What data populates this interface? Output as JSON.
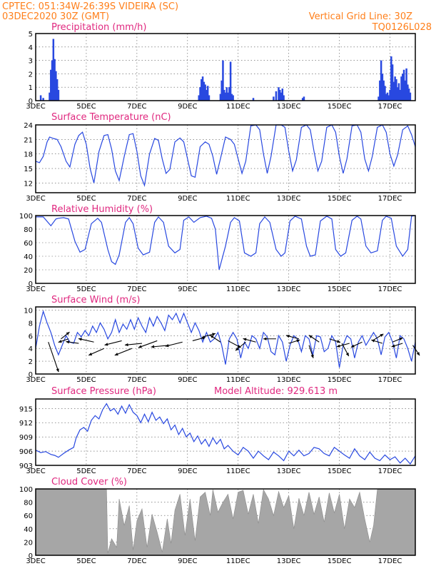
{
  "header": {
    "line1": "CPTEC:   051:34W-26:39S   VIDEIRA (SC)",
    "line2": "03DEC2020 30Z (GMT)",
    "grid_note": "Vertical Grid Line: 30Z",
    "code": "TQ0126L028"
  },
  "colors": {
    "header": "#ff7f1a",
    "title": "#e0287f",
    "series": "#2848e0",
    "cloud": "#a6a6a6",
    "frame": "#000000"
  },
  "x_axis": {
    "start": "03DEC2020 00Z",
    "end": "18DEC2020 00Z",
    "tick_labels": [
      "3DEC",
      "5DEC",
      "7DEC",
      "9DEC",
      "11DEC",
      "13DEC",
      "15DEC",
      "17DEC"
    ],
    "tick_days": [
      3,
      5,
      7,
      9,
      11,
      13,
      15,
      17
    ]
  },
  "chart_data": [
    {
      "id": "precip",
      "type": "bar",
      "title": "Precipitation (mm/h)",
      "ylim": [
        0,
        5
      ],
      "yticks": [
        0,
        1,
        2,
        3,
        4,
        5
      ],
      "grid": true,
      "x": [
        3.2,
        3.3,
        3.55,
        3.6,
        3.65,
        3.7,
        3.75,
        3.8,
        3.85,
        3.9,
        9.45,
        9.5,
        9.55,
        9.6,
        9.65,
        9.7,
        9.75,
        9.8,
        9.85,
        10.3,
        10.35,
        10.4,
        10.45,
        10.5,
        10.55,
        10.6,
        10.65,
        10.7,
        10.75,
        10.8,
        11.6,
        12.4,
        12.5,
        12.6,
        12.65,
        12.7,
        12.75,
        12.8,
        13.55,
        13.6,
        16.55,
        16.6,
        16.65,
        16.7,
        16.75,
        16.8,
        16.85,
        16.9,
        16.95,
        17.0,
        17.05,
        17.1,
        17.15,
        17.2,
        17.25,
        17.3,
        17.35,
        17.4,
        17.45,
        17.5,
        17.55,
        17.6,
        17.65,
        17.7,
        17.75,
        17.8
      ],
      "values": [
        0.4,
        0.2,
        0.6,
        2.3,
        3.0,
        4.6,
        3.1,
        2.2,
        1.6,
        0.8,
        0.4,
        1.0,
        1.6,
        1.8,
        1.4,
        1.2,
        0.8,
        1.1,
        0.4,
        0.5,
        1.5,
        3.0,
        0.8,
        0.6,
        1.0,
        0.6,
        1.0,
        2.9,
        0.5,
        0.4,
        0.2,
        0.3,
        0.7,
        1.0,
        0.8,
        0.6,
        0.9,
        0.4,
        0.2,
        0.3,
        0.3,
        1.5,
        3.0,
        2.0,
        1.5,
        1.1,
        0.5,
        0.6,
        0.4,
        0.8,
        3.3,
        2.7,
        1.4,
        1.8,
        1.6,
        1.0,
        1.3,
        0.8,
        1.8,
        2.0,
        2.3,
        1.5,
        2.4,
        1.2,
        0.9,
        0.6
      ]
    },
    {
      "id": "temp",
      "type": "line",
      "title": "Surface Temperature (nC)",
      "ylim": [
        10,
        24
      ],
      "yticks": [
        12,
        15,
        18,
        21,
        24
      ],
      "grid": true,
      "x": [
        3.0,
        3.15,
        3.3,
        3.45,
        3.55,
        3.7,
        3.85,
        4.0,
        4.2,
        4.35,
        4.55,
        4.7,
        4.85,
        5.0,
        5.15,
        5.3,
        5.5,
        5.7,
        5.85,
        6.0,
        6.15,
        6.3,
        6.5,
        6.7,
        6.85,
        7.0,
        7.15,
        7.3,
        7.5,
        7.7,
        7.85,
        8.0,
        8.15,
        8.3,
        8.5,
        8.7,
        8.85,
        9.0,
        9.15,
        9.3,
        9.5,
        9.7,
        9.85,
        10.0,
        10.15,
        10.3,
        10.5,
        10.7,
        10.85,
        11.0,
        11.15,
        11.3,
        11.5,
        11.7,
        11.85,
        12.0,
        12.15,
        12.3,
        12.5,
        12.7,
        12.85,
        13.0,
        13.15,
        13.3,
        13.5,
        13.7,
        13.85,
        14.0,
        14.15,
        14.3,
        14.5,
        14.7,
        14.85,
        15.0,
        15.15,
        15.3,
        15.5,
        15.7,
        15.85,
        16.0,
        16.15,
        16.3,
        16.5,
        16.7,
        16.85,
        17.0,
        17.15,
        17.3,
        17.5,
        17.7,
        17.85,
        18.0
      ],
      "values": [
        16.5,
        16.2,
        17.5,
        20.5,
        21.5,
        21.2,
        21.0,
        19.5,
        16.5,
        15.3,
        20.0,
        21.8,
        22.5,
        20.0,
        15.0,
        12.0,
        18.5,
        21.8,
        22.0,
        19.0,
        14.5,
        12.5,
        17.5,
        22.0,
        22.2,
        18.5,
        13.5,
        11.5,
        18.0,
        21.2,
        20.8,
        17.0,
        14.0,
        14.8,
        20.5,
        21.3,
        20.5,
        17.0,
        13.5,
        13.2,
        19.5,
        20.5,
        20.0,
        17.5,
        13.8,
        17.0,
        21.5,
        21.0,
        20.0,
        17.0,
        14.0,
        16.5,
        23.8,
        24.0,
        23.0,
        18.0,
        14.0,
        17.5,
        24.0,
        24.0,
        23.5,
        18.5,
        14.5,
        16.8,
        23.5,
        24.0,
        23.0,
        18.5,
        14.5,
        16.5,
        23.5,
        24.0,
        22.5,
        17.5,
        14.0,
        17.0,
        23.8,
        24.0,
        22.5,
        17.0,
        14.5,
        17.5,
        23.5,
        24.0,
        22.5,
        18.0,
        15.5,
        17.8,
        23.0,
        23.8,
        22.0,
        19.5
      ]
    },
    {
      "id": "rh",
      "type": "line",
      "title": "Relative Humidity (%)",
      "ylim": [
        0,
        100
      ],
      "yticks": [
        0,
        20,
        40,
        60,
        80,
        100
      ],
      "grid": true,
      "x": [
        3.0,
        3.3,
        3.6,
        3.8,
        3.9,
        4.1,
        4.3,
        4.55,
        4.75,
        4.95,
        5.2,
        5.45,
        5.6,
        5.85,
        6.0,
        6.15,
        6.3,
        6.55,
        6.7,
        6.85,
        7.05,
        7.25,
        7.5,
        7.7,
        7.85,
        8.05,
        8.25,
        8.5,
        8.7,
        8.85,
        9.05,
        9.25,
        9.5,
        9.75,
        9.95,
        10.1,
        10.25,
        10.5,
        10.7,
        10.85,
        11.05,
        11.25,
        11.5,
        11.7,
        11.85,
        12.05,
        12.25,
        12.5,
        12.7,
        12.85,
        13.05,
        13.25,
        13.5,
        13.7,
        13.85,
        14.05,
        14.25,
        14.5,
        14.7,
        14.85,
        15.05,
        15.25,
        15.5,
        15.7,
        15.85,
        16.05,
        16.25,
        16.5,
        16.7,
        16.85,
        17.05,
        17.25,
        17.5,
        17.7,
        17.85,
        18.0
      ],
      "values": [
        98,
        98,
        85,
        95,
        96,
        97,
        95,
        62,
        46,
        50,
        88,
        96,
        90,
        50,
        32,
        28,
        42,
        90,
        97,
        88,
        52,
        42,
        46,
        90,
        98,
        90,
        55,
        45,
        50,
        93,
        98,
        90,
        97,
        99,
        96,
        80,
        20,
        55,
        90,
        97,
        92,
        45,
        40,
        45,
        88,
        98,
        90,
        50,
        40,
        45,
        92,
        99,
        95,
        55,
        40,
        42,
        92,
        99,
        95,
        50,
        40,
        45,
        93,
        99,
        95,
        55,
        45,
        48,
        93,
        99,
        96,
        55,
        40,
        50,
        99,
        100
      ]
    },
    {
      "id": "wind",
      "type": "line",
      "title": "Surface Wind (m/s)",
      "ylim": [
        0,
        10.5
      ],
      "yticks": [
        0,
        2,
        4,
        6,
        8,
        10
      ],
      "grid": true,
      "x": [
        3.0,
        3.15,
        3.3,
        3.45,
        3.6,
        3.75,
        3.9,
        4.05,
        4.2,
        4.35,
        4.5,
        4.65,
        4.8,
        4.95,
        5.1,
        5.25,
        5.4,
        5.55,
        5.7,
        5.85,
        6.0,
        6.15,
        6.3,
        6.45,
        6.6,
        6.75,
        6.9,
        7.05,
        7.2,
        7.35,
        7.5,
        7.65,
        7.8,
        7.95,
        8.1,
        8.25,
        8.4,
        8.55,
        8.7,
        8.85,
        9.0,
        9.15,
        9.3,
        9.45,
        9.6,
        9.75,
        9.9,
        10.05,
        10.2,
        10.35,
        10.5,
        10.65,
        10.8,
        10.95,
        11.1,
        11.25,
        11.4,
        11.55,
        11.7,
        11.85,
        12.0,
        12.15,
        12.3,
        12.45,
        12.6,
        12.75,
        12.9,
        13.05,
        13.2,
        13.35,
        13.5,
        13.65,
        13.8,
        13.95,
        14.1,
        14.25,
        14.4,
        14.55,
        14.7,
        14.85,
        15.0,
        15.15,
        15.3,
        15.45,
        15.6,
        15.75,
        15.9,
        16.05,
        16.2,
        16.35,
        16.5,
        16.65,
        16.8,
        16.95,
        17.1,
        17.25,
        17.4,
        17.55,
        17.7,
        17.85,
        18.0
      ],
      "values": [
        4.0,
        7.5,
        9.8,
        8.0,
        6.5,
        4.5,
        3.0,
        4.5,
        6.0,
        5.0,
        4.8,
        6.5,
        5.8,
        6.8,
        6.0,
        7.5,
        6.5,
        8.0,
        7.0,
        5.5,
        6.5,
        8.5,
        6.5,
        7.8,
        7.0,
        8.5,
        7.0,
        8.8,
        7.5,
        6.5,
        8.8,
        7.5,
        9.0,
        8.0,
        6.8,
        9.2,
        8.5,
        9.5,
        8.0,
        9.5,
        8.0,
        6.5,
        8.0,
        6.8,
        5.0,
        6.5,
        5.0,
        5.5,
        6.5,
        4.5,
        1.5,
        5.5,
        6.5,
        5.5,
        2.5,
        5.0,
        4.0,
        6.0,
        5.5,
        4.0,
        6.5,
        5.8,
        3.5,
        3.0,
        6.0,
        5.0,
        2.0,
        4.5,
        6.0,
        5.5,
        3.5,
        6.0,
        5.5,
        3.0,
        6.0,
        5.8,
        3.5,
        4.0,
        6.0,
        5.0,
        1.0,
        4.5,
        6.0,
        5.5,
        2.5,
        5.0,
        6.0,
        4.5,
        5.5,
        6.5,
        5.5,
        3.0,
        5.8,
        6.5,
        5.0,
        2.5,
        6.0,
        5.5,
        4.0,
        2.0,
        5.0
      ],
      "arrows": [
        {
          "x": 3.5,
          "y": 5.0,
          "u": 1.2,
          "v": -3.5
        },
        {
          "x": 4.0,
          "y": 5.5,
          "u": 1.0,
          "v": 0.8
        },
        {
          "x": 4.3,
          "y": 5.5,
          "u": -1.2,
          "v": -0.4
        },
        {
          "x": 4.7,
          "y": 4.8,
          "u": -1.5,
          "v": 0.2
        },
        {
          "x": 5.3,
          "y": 5.0,
          "u": -1.8,
          "v": 0.4
        },
        {
          "x": 5.7,
          "y": 4.0,
          "u": -1.8,
          "v": -0.8
        },
        {
          "x": 6.4,
          "y": 5.2,
          "u": -2.0,
          "v": -0.5
        },
        {
          "x": 6.8,
          "y": 4.0,
          "u": -2.0,
          "v": -0.8
        },
        {
          "x": 7.2,
          "y": 4.8,
          "u": -2.0,
          "v": -0.2
        },
        {
          "x": 7.8,
          "y": 5.2,
          "u": -2.2,
          "v": -0.8
        },
        {
          "x": 8.3,
          "y": 4.5,
          "u": -2.2,
          "v": -0.2
        },
        {
          "x": 8.8,
          "y": 5.0,
          "u": -2.0,
          "v": -0.5
        },
        {
          "x": 9.2,
          "y": 5.2,
          "u": 1.5,
          "v": 0.4
        },
        {
          "x": 9.6,
          "y": 5.8,
          "u": 1.5,
          "v": 0.4
        },
        {
          "x": 10.3,
          "y": 5.0,
          "u": -1.2,
          "v": 0.8
        },
        {
          "x": 10.6,
          "y": 5.2,
          "u": 1.5,
          "v": -0.8
        },
        {
          "x": 11.3,
          "y": 5.0,
          "u": -1.2,
          "v": -1.0
        },
        {
          "x": 11.7,
          "y": 5.0,
          "u": -1.5,
          "v": 0.4
        },
        {
          "x": 12.5,
          "y": 5.5,
          "u": -1.5,
          "v": 0.0
        },
        {
          "x": 13.0,
          "y": 4.8,
          "u": 1.3,
          "v": 0.4
        },
        {
          "x": 13.4,
          "y": 5.5,
          "u": -1.5,
          "v": 0.4
        },
        {
          "x": 13.8,
          "y": 4.5,
          "u": 0.5,
          "v": -1.5
        },
        {
          "x": 14.2,
          "y": 5.0,
          "u": -1.2,
          "v": 0.8
        },
        {
          "x": 14.6,
          "y": 5.5,
          "u": 1.3,
          "v": -0.4
        },
        {
          "x": 15.1,
          "y": 4.8,
          "u": 0.8,
          "v": -1.5
        },
        {
          "x": 15.4,
          "y": 4.8,
          "u": -1.5,
          "v": -0.4
        },
        {
          "x": 15.9,
          "y": 5.0,
          "u": -1.3,
          "v": -0.6
        },
        {
          "x": 16.3,
          "y": 5.2,
          "u": 1.3,
          "v": 0.8
        },
        {
          "x": 16.7,
          "y": 4.8,
          "u": -1.3,
          "v": 0.4
        },
        {
          "x": 17.1,
          "y": 5.0,
          "u": 1.2,
          "v": 0.5
        },
        {
          "x": 17.5,
          "y": 4.8,
          "u": -1.3,
          "v": -0.4
        },
        {
          "x": 17.9,
          "y": 4.5,
          "u": 0.8,
          "v": -1.2
        }
      ]
    },
    {
      "id": "pres",
      "type": "line",
      "title": "Surface Pressure (hPa)",
      "annotation": "Model Altitude: 929.613 m",
      "ylim": [
        903,
        917
      ],
      "yticks": [
        903,
        906,
        909,
        912,
        915
      ],
      "grid": true,
      "x": [
        3.0,
        3.2,
        3.4,
        3.6,
        3.75,
        3.9,
        4.1,
        4.3,
        4.5,
        4.6,
        4.75,
        4.9,
        5.05,
        5.2,
        5.35,
        5.5,
        5.65,
        5.8,
        5.95,
        6.1,
        6.25,
        6.4,
        6.55,
        6.7,
        6.85,
        7.0,
        7.15,
        7.3,
        7.45,
        7.6,
        7.75,
        7.9,
        8.05,
        8.2,
        8.35,
        8.5,
        8.65,
        8.8,
        8.95,
        9.1,
        9.25,
        9.4,
        9.55,
        9.7,
        9.85,
        10.0,
        10.15,
        10.3,
        10.45,
        10.6,
        10.8,
        11.0,
        11.2,
        11.4,
        11.6,
        11.8,
        12.0,
        12.2,
        12.4,
        12.6,
        12.8,
        13.0,
        13.2,
        13.4,
        13.6,
        13.8,
        14.0,
        14.2,
        14.4,
        14.6,
        14.8,
        15.0,
        15.2,
        15.4,
        15.6,
        15.8,
        16.0,
        16.2,
        16.4,
        16.6,
        16.8,
        17.0,
        17.2,
        17.4,
        17.6,
        17.8,
        18.0
      ],
      "values": [
        906.2,
        905.7,
        905.9,
        905.3,
        905.1,
        904.7,
        905.5,
        906.2,
        906.8,
        908.8,
        910.5,
        911.0,
        910.2,
        912.5,
        913.5,
        912.8,
        914.8,
        916.0,
        914.5,
        915.0,
        913.8,
        915.5,
        914.0,
        915.8,
        914.2,
        913.5,
        912.0,
        913.8,
        912.2,
        914.2,
        912.5,
        913.2,
        911.8,
        912.8,
        910.5,
        911.5,
        909.5,
        910.8,
        909.0,
        909.8,
        908.0,
        909.2,
        907.5,
        908.5,
        907.0,
        908.8,
        907.5,
        908.5,
        906.5,
        907.2,
        906.0,
        905.2,
        906.8,
        906.0,
        904.5,
        906.0,
        905.0,
        904.2,
        905.8,
        905.0,
        904.0,
        906.0,
        905.0,
        906.2,
        905.0,
        905.5,
        906.8,
        906.5,
        905.5,
        905.0,
        906.8,
        906.0,
        905.2,
        904.5,
        906.5,
        905.0,
        904.2,
        905.8,
        904.5,
        904.0,
        905.2,
        904.2,
        904.8,
        903.5,
        904.5,
        903.3,
        905.0
      ]
    },
    {
      "id": "cloud",
      "type": "area",
      "title": "Cloud Cover (%)",
      "ylim": [
        0,
        100
      ],
      "yticks": [
        0,
        20,
        40,
        60,
        80,
        100
      ],
      "grid": true,
      "x": [
        3.0,
        3.5,
        4.0,
        4.5,
        5.0,
        5.5,
        5.8,
        5.85,
        6.0,
        6.2,
        6.3,
        6.5,
        6.7,
        6.85,
        7.0,
        7.2,
        7.4,
        7.6,
        7.8,
        8.0,
        8.2,
        8.35,
        8.5,
        8.7,
        8.9,
        9.1,
        9.3,
        9.5,
        9.7,
        9.9,
        10.0,
        10.2,
        10.4,
        10.6,
        10.8,
        11.0,
        11.2,
        11.4,
        11.6,
        11.8,
        12.0,
        12.2,
        12.4,
        12.6,
        12.8,
        13.0,
        13.2,
        13.4,
        13.6,
        13.8,
        14.0,
        14.2,
        14.4,
        14.6,
        14.8,
        15.0,
        15.2,
        15.4,
        15.6,
        15.8,
        16.0,
        16.2,
        16.35,
        16.5,
        17.0,
        17.5,
        18.0
      ],
      "values": [
        99,
        99,
        99,
        99,
        99,
        99,
        99,
        3,
        25,
        12,
        85,
        45,
        75,
        8,
        52,
        70,
        12,
        62,
        35,
        5,
        55,
        18,
        68,
        92,
        30,
        85,
        22,
        88,
        95,
        60,
        99,
        65,
        80,
        92,
        55,
        95,
        98,
        62,
        92,
        48,
        99,
        85,
        60,
        96,
        72,
        90,
        40,
        86,
        60,
        95,
        62,
        88,
        50,
        94,
        64,
        92,
        40,
        85,
        72,
        95,
        55,
        20,
        45,
        99,
        99,
        99,
        99
      ]
    }
  ]
}
